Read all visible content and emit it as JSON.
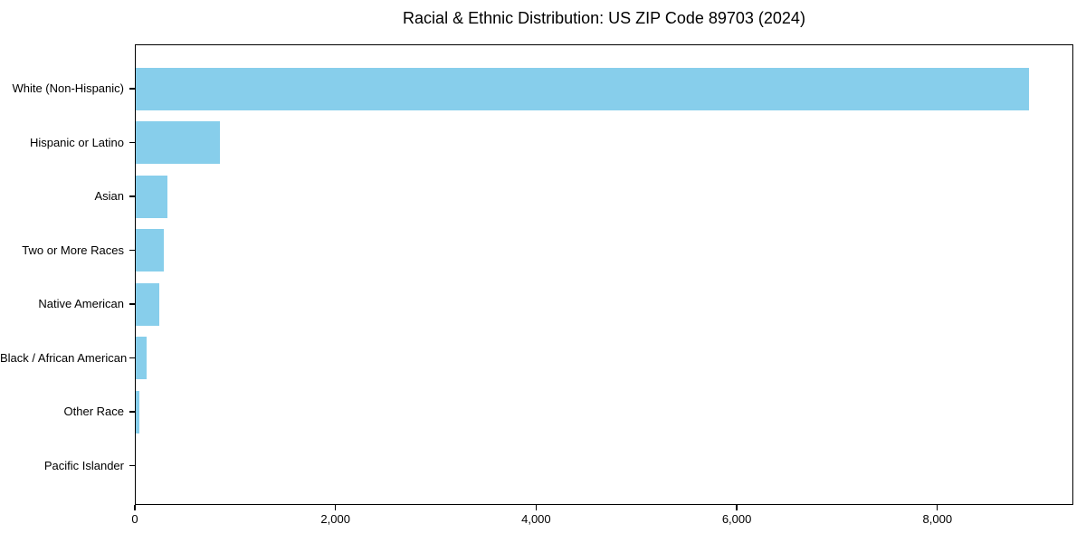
{
  "chart_data": {
    "type": "bar",
    "orientation": "horizontal",
    "title": "Racial & Ethnic Distribution: US ZIP Code 89703 (2024)",
    "categories": [
      "White (Non-Hispanic)",
      "Hispanic or Latino",
      "Asian",
      "Two or More Races",
      "Native American",
      "Black / African American",
      "Other Race",
      "Pacific Islander"
    ],
    "values": [
      8905,
      835,
      315,
      280,
      235,
      105,
      40,
      0
    ],
    "xlabel": "",
    "ylabel": "",
    "xlim": [
      0,
      9355
    ],
    "xticks": [
      0,
      2000,
      4000,
      6000,
      8000
    ],
    "xtick_labels": [
      "0",
      "2,000",
      "4,000",
      "6,000",
      "8,000"
    ],
    "grid": false,
    "legend": null,
    "bar_color": "#87CEEB",
    "spine_color": "#000000",
    "text_color": "#000000",
    "background_color": "#ffffff"
  }
}
